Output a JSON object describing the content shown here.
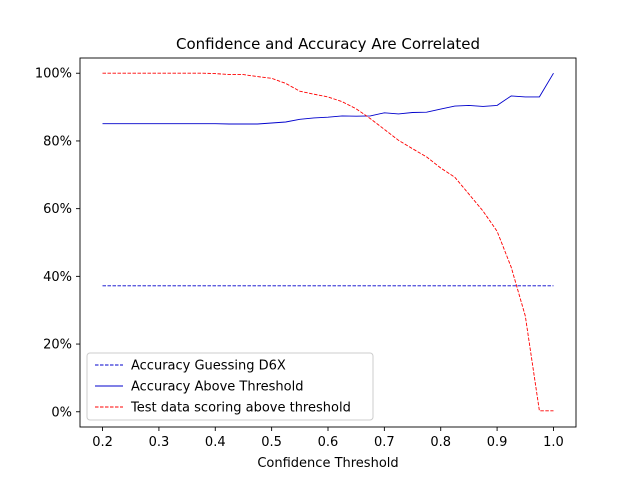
{
  "chart_data": {
    "type": "line",
    "title": "Confidence and Accuracy Are Correlated",
    "xlabel": "Confidence Threshold",
    "ylabel": "",
    "xlim": [
      0.16,
      1.04
    ],
    "ylim": [
      -4.5,
      104.5
    ],
    "x_ticks": [
      0.2,
      0.3,
      0.4,
      0.5,
      0.6,
      0.7,
      0.8,
      0.9,
      1.0
    ],
    "x_tick_labels": [
      "0.2",
      "0.3",
      "0.4",
      "0.5",
      "0.6",
      "0.7",
      "0.8",
      "0.9",
      "1.0"
    ],
    "y_ticks": [
      0,
      20,
      40,
      60,
      80,
      100
    ],
    "y_tick_labels": [
      "0%",
      "20%",
      "40%",
      "60%",
      "80%",
      "100%"
    ],
    "grid": false,
    "legend_position": "bottom-left",
    "series": [
      {
        "name": "Accuracy Guessing D6X",
        "color": "#0000cc",
        "style": "dashed",
        "x": [
          0.2,
          1.0
        ],
        "y": [
          37.2,
          37.2
        ]
      },
      {
        "name": "Accuracy Above Threshold",
        "color": "#0000cc",
        "style": "solid",
        "x": [
          0.2,
          0.225,
          0.25,
          0.275,
          0.3,
          0.325,
          0.35,
          0.375,
          0.4,
          0.425,
          0.45,
          0.475,
          0.5,
          0.525,
          0.55,
          0.575,
          0.6,
          0.625,
          0.65,
          0.675,
          0.7,
          0.725,
          0.75,
          0.775,
          0.8,
          0.825,
          0.85,
          0.875,
          0.9,
          0.925,
          0.95,
          0.975,
          1.0
        ],
        "y": [
          85.1,
          85.1,
          85.1,
          85.1,
          85.1,
          85.1,
          85.1,
          85.1,
          85.1,
          85.0,
          85.0,
          85.0,
          85.3,
          85.6,
          86.4,
          86.8,
          87.0,
          87.4,
          87.3,
          87.4,
          88.3,
          88.0,
          88.4,
          88.5,
          89.4,
          90.3,
          90.5,
          90.2,
          90.5,
          93.3,
          93.0,
          93.0,
          100.0
        ]
      },
      {
        "name": "Test data scoring above threshold",
        "color": "#ff0000",
        "style": "dashed",
        "x": [
          0.2,
          0.225,
          0.25,
          0.275,
          0.3,
          0.325,
          0.35,
          0.375,
          0.4,
          0.425,
          0.45,
          0.475,
          0.5,
          0.525,
          0.55,
          0.575,
          0.6,
          0.625,
          0.65,
          0.675,
          0.7,
          0.725,
          0.75,
          0.775,
          0.8,
          0.825,
          0.85,
          0.875,
          0.9,
          0.925,
          0.95,
          0.975,
          1.0
        ],
        "y": [
          100.0,
          100.0,
          100.0,
          100.0,
          100.0,
          100.0,
          100.0,
          100.0,
          99.9,
          99.6,
          99.6,
          99.0,
          98.5,
          97.0,
          94.7,
          93.8,
          93.0,
          91.6,
          89.5,
          86.6,
          83.4,
          80.2,
          77.7,
          75.3,
          72.0,
          69.3,
          64.3,
          59.3,
          53.3,
          42.7,
          28.3,
          0.3,
          0.3
        ]
      }
    ]
  }
}
